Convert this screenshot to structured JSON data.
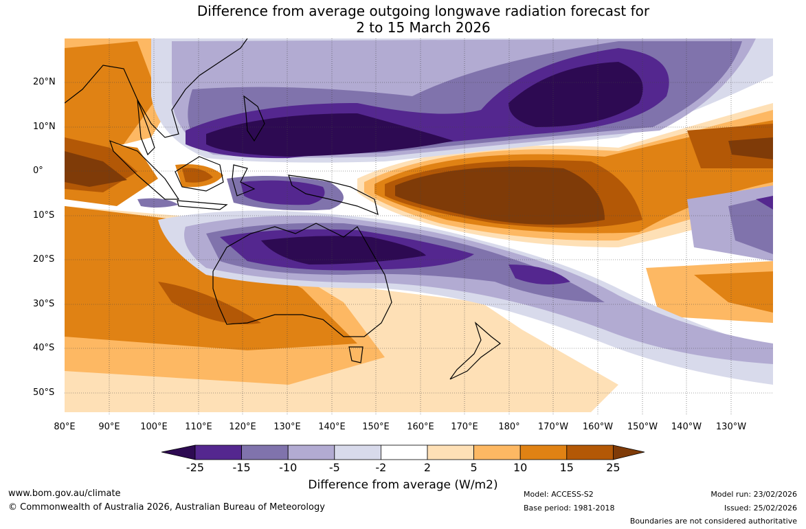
{
  "title": {
    "line1": "Difference from average outgoing longwave radiation forecast for",
    "line2": "2 to 15 March 2026"
  },
  "map": {
    "lat_labels": [
      "20°N",
      "10°N",
      "0°",
      "10°S",
      "20°S",
      "30°S",
      "40°S",
      "50°S"
    ],
    "lon_labels": [
      "80°E",
      "90°E",
      "100°E",
      "110°E",
      "120°E",
      "130°E",
      "140°E",
      "150°E",
      "160°E",
      "170°E",
      "180°",
      "170°W",
      "160°W",
      "150°W",
      "140°W",
      "130°W"
    ],
    "palette": {
      "p4": "#2d0a52",
      "p3": "#54278f",
      "p2": "#8073ac",
      "p1": "#b2abd2",
      "p0": "#d8daeb",
      "w": "#ffffff",
      "o0": "#fee0b6",
      "o1": "#fdb863",
      "o2": "#e08214",
      "o3": "#b35806",
      "o4": "#7f3b08"
    }
  },
  "colorbar": {
    "ticks": [
      "-25",
      "-15",
      "-10",
      "-5",
      "-2",
      "2",
      "5",
      "10",
      "15",
      "25"
    ],
    "colors": [
      "#2d0a52",
      "#54278f",
      "#8073ac",
      "#b2abd2",
      "#d8daeb",
      "#ffffff",
      "#fee0b6",
      "#fdb863",
      "#e08214",
      "#b35806",
      "#7f3b08"
    ],
    "title": "Difference from average (W/m2)"
  },
  "footer": {
    "website": "www.bom.gov.au/climate",
    "copyright": "© Commonwealth of Australia 2026, Australian Bureau of Meteorology",
    "model": "Model: ACCESS-S2",
    "base_period": "Base period: 1981-2018",
    "model_run": "Model run: 23/02/2026",
    "issued": "Issued: 25/02/2026",
    "boundaries": "Boundaries are not considered authoritative"
  }
}
